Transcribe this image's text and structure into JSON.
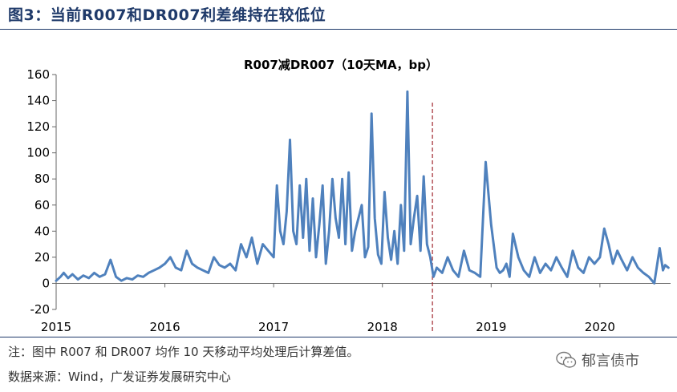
{
  "figure": {
    "title": "图3：当前R007和DR007利差维持在较低位",
    "note": "注：图中 R007 和 DR007 均作 10 天移动平均处理后计算差值。",
    "source": "数据来源：Wind，广发证券发展研究中心",
    "watermark": "郁言债市",
    "watermark_icon": "wechat-icon"
  },
  "colors": {
    "line": "#4f81bd",
    "title": "#1f3a6a",
    "marker": "#a0262e"
  },
  "chart_data": {
    "type": "line",
    "title": "R007减DR007（10天MA，bp）",
    "xlabel": "",
    "ylabel": "",
    "x_ticks": [
      "2015",
      "2016",
      "2017",
      "2018",
      "2019",
      "2020"
    ],
    "y_ticks": [
      -20,
      0,
      20,
      40,
      60,
      80,
      100,
      120,
      140,
      160
    ],
    "xlim": [
      2015.0,
      2020.65
    ],
    "ylim": [
      -20,
      160
    ],
    "grid": false,
    "vertical_marker_x": 2018.46,
    "series": [
      {
        "x": [
          2015.0,
          2015.04,
          2015.07,
          2015.11,
          2015.15,
          2015.2,
          2015.25,
          2015.3,
          2015.35,
          2015.4,
          2015.45,
          2015.5,
          2015.55,
          2015.6,
          2015.65,
          2015.7,
          2015.75,
          2015.8,
          2015.85,
          2015.9,
          2015.95,
          2016.0,
          2016.05,
          2016.1,
          2016.15,
          2016.2,
          2016.25,
          2016.3,
          2016.35,
          2016.4,
          2016.45,
          2016.5,
          2016.55,
          2016.6,
          2016.65,
          2016.7,
          2016.75,
          2016.8,
          2016.85,
          2016.9,
          2016.95,
          2017.0,
          2017.03,
          2017.06,
          2017.09,
          2017.12,
          2017.15,
          2017.18,
          2017.21,
          2017.24,
          2017.27,
          2017.3,
          2017.33,
          2017.36,
          2017.39,
          2017.42,
          2017.45,
          2017.48,
          2017.51,
          2017.54,
          2017.57,
          2017.6,
          2017.63,
          2017.66,
          2017.69,
          2017.72,
          2017.75,
          2017.78,
          2017.81,
          2017.84,
          2017.87,
          2017.9,
          2017.93,
          2017.96,
          2017.99,
          2018.02,
          2018.05,
          2018.08,
          2018.11,
          2018.14,
          2018.17,
          2018.2,
          2018.23,
          2018.26,
          2018.29,
          2018.32,
          2018.35,
          2018.38,
          2018.41,
          2018.44,
          2018.47,
          2018.5,
          2018.55,
          2018.6,
          2018.65,
          2018.7,
          2018.75,
          2018.8,
          2018.85,
          2018.9,
          2018.95,
          2019.0,
          2019.05,
          2019.08,
          2019.11,
          2019.14,
          2019.17,
          2019.2,
          2019.25,
          2019.3,
          2019.35,
          2019.4,
          2019.45,
          2019.5,
          2019.55,
          2019.6,
          2019.65,
          2019.7,
          2019.75,
          2019.8,
          2019.85,
          2019.9,
          2019.95,
          2020.0,
          2020.04,
          2020.08,
          2020.12,
          2020.16,
          2020.2,
          2020.25,
          2020.3,
          2020.35,
          2020.4,
          2020.45,
          2020.5,
          2020.55,
          2020.58,
          2020.6,
          2020.63
        ],
        "values": [
          2,
          5,
          8,
          4,
          7,
          3,
          6,
          4,
          8,
          5,
          7,
          18,
          5,
          2,
          4,
          3,
          6,
          5,
          8,
          10,
          12,
          15,
          20,
          12,
          10,
          25,
          15,
          12,
          10,
          8,
          20,
          14,
          12,
          15,
          10,
          30,
          20,
          35,
          15,
          30,
          25,
          20,
          75,
          40,
          30,
          55,
          110,
          40,
          30,
          75,
          35,
          80,
          25,
          65,
          20,
          45,
          75,
          15,
          40,
          80,
          50,
          35,
          80,
          30,
          85,
          25,
          40,
          50,
          60,
          20,
          28,
          130,
          50,
          22,
          15,
          70,
          35,
          18,
          40,
          15,
          60,
          25,
          147,
          30,
          50,
          67,
          25,
          82,
          30,
          20,
          5,
          12,
          8,
          20,
          10,
          5,
          25,
          10,
          8,
          5,
          93,
          45,
          12,
          8,
          10,
          15,
          5,
          38,
          20,
          10,
          5,
          20,
          8,
          15,
          10,
          20,
          12,
          5,
          25,
          12,
          8,
          20,
          15,
          20,
          42,
          30,
          15,
          25,
          18,
          10,
          20,
          12,
          8,
          5,
          0,
          27,
          10,
          14,
          12
        ]
      }
    ]
  }
}
